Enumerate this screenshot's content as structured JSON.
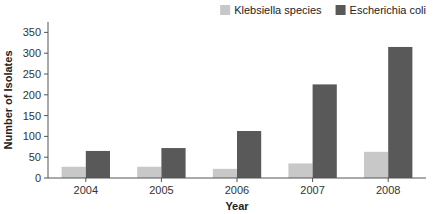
{
  "chart_data": {
    "type": "bar",
    "xlabel": "Year",
    "ylabel": "Number of Isolates",
    "categories": [
      "2004",
      "2005",
      "2006",
      "2007",
      "2008"
    ],
    "series": [
      {
        "name": "Klebsiella species",
        "color": "#c8c8c8",
        "values": [
          27,
          27,
          22,
          35,
          63
        ]
      },
      {
        "name": "Escherichia coli",
        "color": "#595959",
        "values": [
          65,
          72,
          113,
          225,
          315
        ]
      }
    ],
    "ylim": [
      0,
      375
    ],
    "yticks": [
      0,
      50,
      100,
      150,
      200,
      250,
      300,
      350
    ],
    "grid": false,
    "legend": "upper right"
  }
}
